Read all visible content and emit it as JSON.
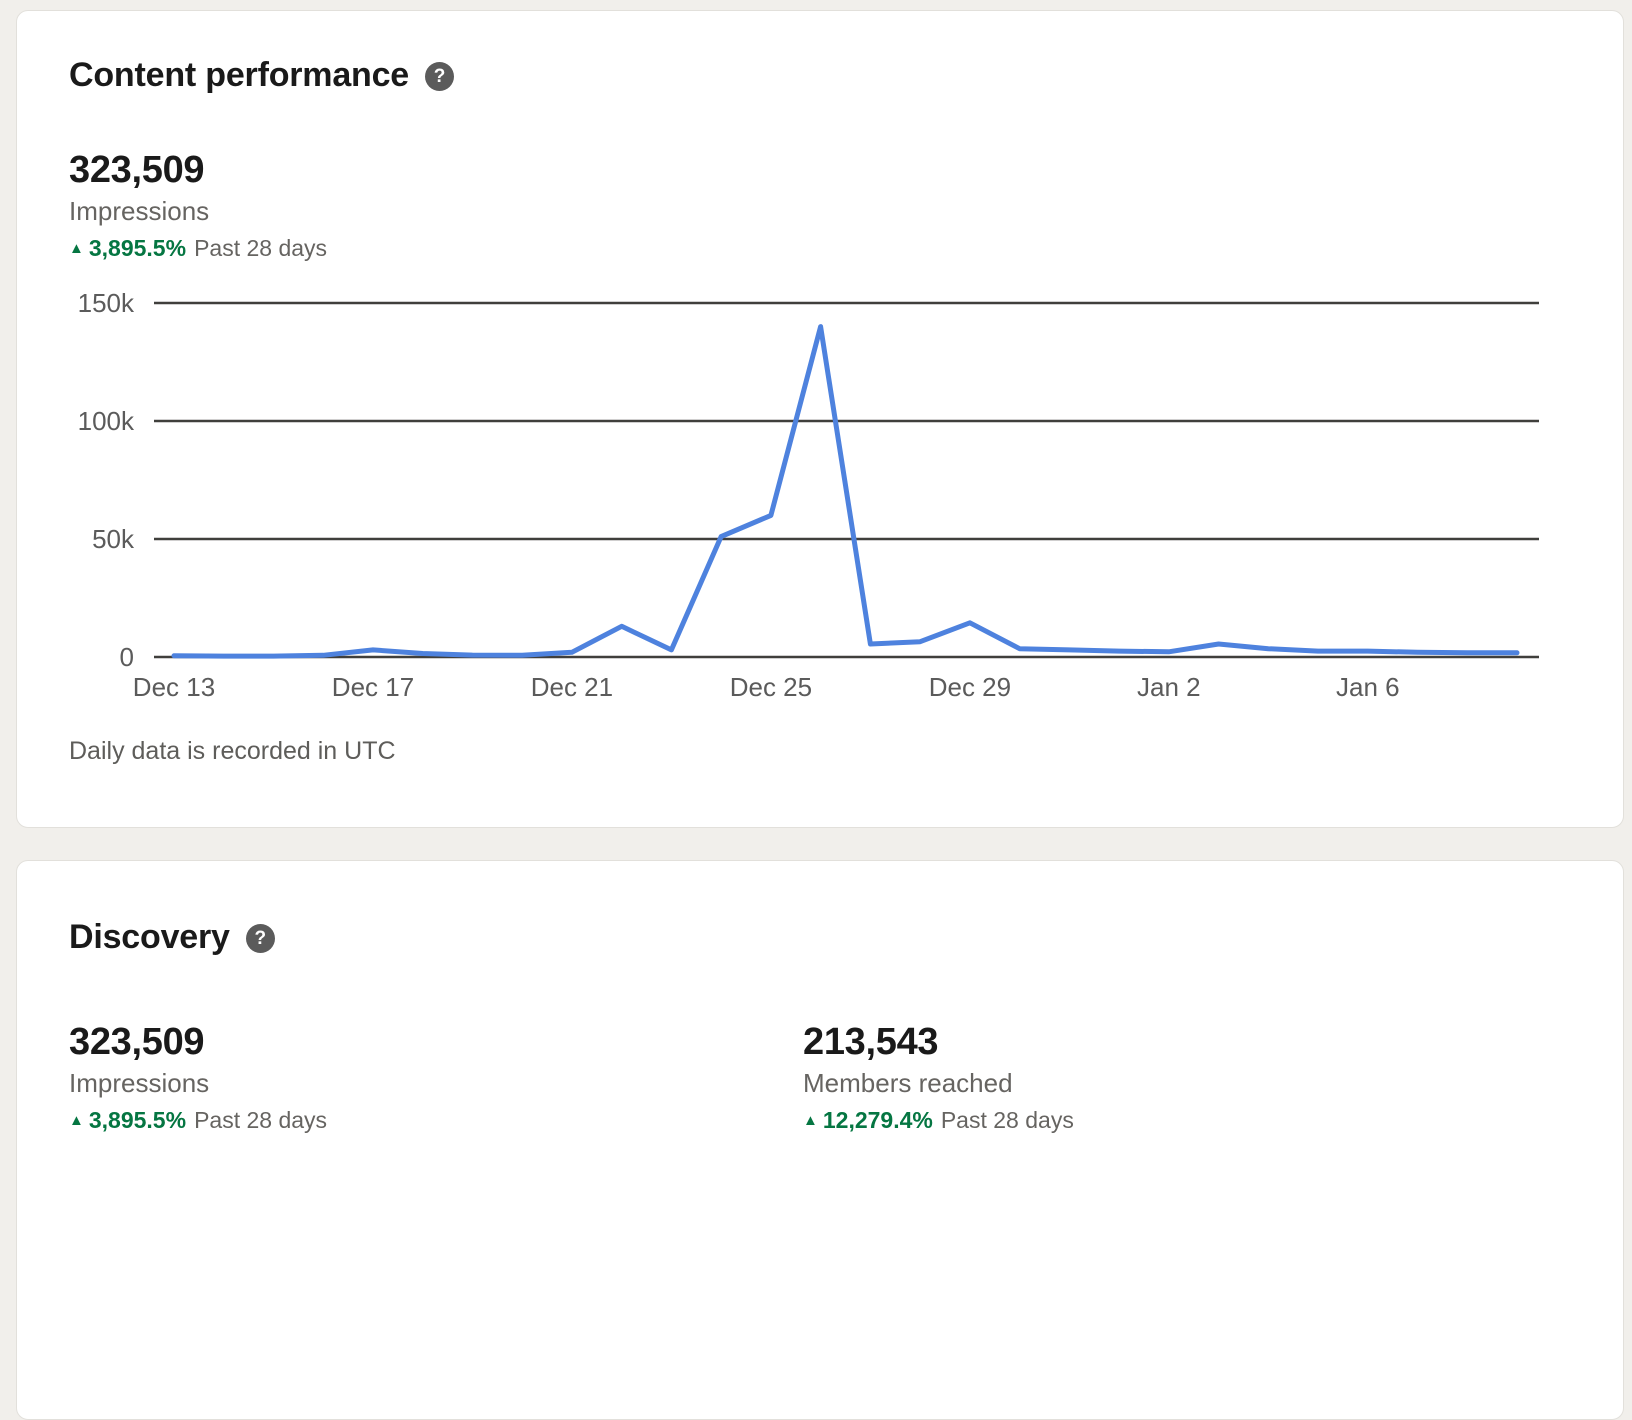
{
  "colors": {
    "page_background": "#f1efeb",
    "card_background": "#ffffff",
    "card_border": "#e2e0db",
    "text_primary": "#1a1a1a",
    "text_secondary": "#666461",
    "positive_green": "#057642",
    "line_blue": "#4e82de",
    "gridline": "#403f3c"
  },
  "icons": {
    "help_glyph": "?",
    "up_arrow_glyph": "▲"
  },
  "content_performance": {
    "title": "Content performance",
    "stat": {
      "value": "323,509",
      "label": "Impressions",
      "trend_percent": "3,895.5%",
      "trend_period": "Past 28 days"
    },
    "footnote": "Daily data is recorded in UTC"
  },
  "chart_data": {
    "type": "line",
    "title": "",
    "xlabel": "",
    "ylabel": "",
    "legend": "none",
    "grid": "horizontal",
    "ylim": [
      0,
      150000
    ],
    "line_color": "#4e82de",
    "grid_color": "#403f3c",
    "axis_label_color": "#5b5b5b",
    "x": [
      "Dec 13",
      "Dec 14",
      "Dec 15",
      "Dec 16",
      "Dec 17",
      "Dec 18",
      "Dec 19",
      "Dec 20",
      "Dec 21",
      "Dec 22",
      "Dec 23",
      "Dec 24",
      "Dec 25",
      "Dec 26",
      "Dec 27",
      "Dec 28",
      "Dec 29",
      "Dec 30",
      "Dec 31",
      "Jan 1",
      "Jan 2",
      "Jan 3",
      "Jan 4",
      "Jan 5",
      "Jan 6",
      "Jan 7",
      "Jan 8",
      "Jan 9"
    ],
    "values": [
      500,
      400,
      400,
      700,
      3000,
      1500,
      800,
      700,
      2000,
      13000,
      3000,
      51000,
      60000,
      140000,
      5500,
      6500,
      14500,
      3500,
      3000,
      2500,
      2200,
      5500,
      3500,
      2500,
      2500,
      2000,
      1800,
      1800
    ],
    "x_ticks": [
      {
        "i": 0,
        "label": "Dec 13"
      },
      {
        "i": 4,
        "label": "Dec 17"
      },
      {
        "i": 8,
        "label": "Dec 21"
      },
      {
        "i": 12,
        "label": "Dec 25"
      },
      {
        "i": 16,
        "label": "Dec 29"
      },
      {
        "i": 20,
        "label": "Jan 2"
      },
      {
        "i": 24,
        "label": "Jan 6"
      }
    ],
    "y_ticks": [
      {
        "v": 0,
        "label": "0"
      },
      {
        "v": 50000,
        "label": "50k"
      },
      {
        "v": 100000,
        "label": "100k"
      },
      {
        "v": 150000,
        "label": "150k"
      }
    ]
  },
  "discovery": {
    "title": "Discovery",
    "stats": [
      {
        "value": "323,509",
        "label": "Impressions",
        "trend_percent": "3,895.5%",
        "trend_period": "Past 28 days"
      },
      {
        "value": "213,543",
        "label": "Members reached",
        "trend_percent": "12,279.4%",
        "trend_period": "Past 28 days"
      }
    ]
  }
}
